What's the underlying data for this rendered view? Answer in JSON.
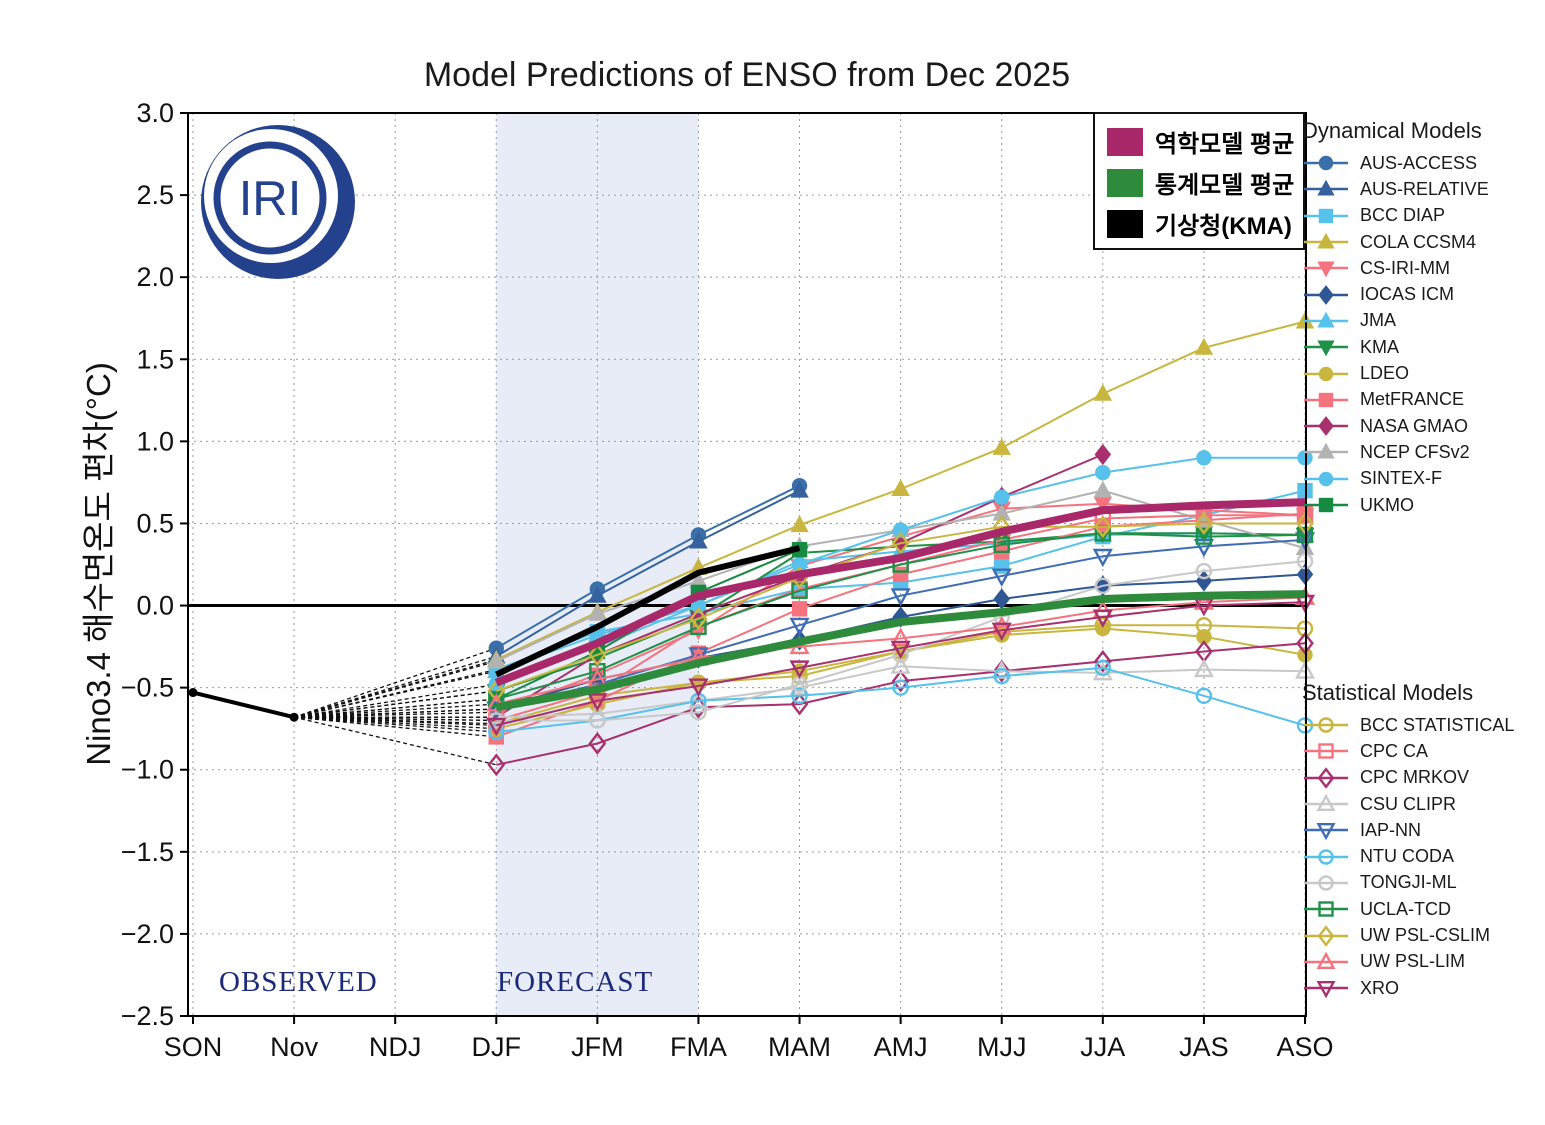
{
  "title": "Model Predictions of ENSO from Dec 2025",
  "y_axis_label": "Nino3.4 해수면온도 편차(°C)",
  "logo_text": "IRI",
  "region_labels": {
    "observed": "OBSERVED",
    "forecast": "FORECAST"
  },
  "legend_headers": {
    "dynamical": "Dynamical Models",
    "statistical": "Statistical Models"
  },
  "mean_legend": [
    {
      "label": "역학모델 평균",
      "color": "#A8286A"
    },
    {
      "label": "통계모델 평균",
      "color": "#2E8B3C"
    },
    {
      "label": "기상청(KMA)",
      "color": "#000000"
    }
  ],
  "colors": {
    "dynamical_mean": "#A8286A",
    "statistical_mean": "#2E8B3C",
    "kma_official": "#000000",
    "observed": "#000000",
    "forecast_band": "#E7ECF7",
    "grid": "#9a9a9a",
    "navy": "#24418E"
  },
  "chart_data": {
    "type": "line",
    "categories": [
      "SON",
      "Nov",
      "NDJ",
      "DJF",
      "JFM",
      "FMA",
      "MAM",
      "AMJ",
      "MJJ",
      "JJA",
      "JAS",
      "ASO"
    ],
    "y_tick_labels": [
      "3.0",
      "2.5",
      "2.0",
      "1.5",
      "1.0",
      "0.5",
      "0.0",
      "-0.5",
      "-1.0",
      "-1.5",
      "-2.0",
      "-2.5"
    ],
    "ylim": [
      -2.5,
      3.0
    ],
    "ytick_step": 0.5,
    "grid": true,
    "forecast_band": [
      "DJF",
      "FMA"
    ],
    "forecast_start_index": 3,
    "observed": {
      "categories": [
        "SON",
        "Nov"
      ],
      "values": [
        -0.53,
        -0.68
      ]
    },
    "means": {
      "dynamical": [
        -0.47,
        -0.23,
        0.06,
        0.19,
        0.29,
        0.45,
        0.58,
        0.61,
        0.63
      ],
      "statistical": [
        -0.62,
        -0.51,
        -0.35,
        -0.22,
        -0.1,
        -0.04,
        0.04,
        0.06,
        0.07
      ],
      "kma_official": [
        -0.42,
        -0.13,
        0.2,
        0.35,
        null,
        null,
        null,
        null,
        null
      ]
    },
    "series": [
      {
        "name": "AUS-ACCESS",
        "group": "dynamical",
        "color": "#3B6FA9",
        "marker": "circle",
        "filled": true,
        "values": [
          -0.26,
          0.1,
          0.43,
          0.73,
          null,
          null,
          null,
          null,
          null
        ]
      },
      {
        "name": "AUS-RELATIVE",
        "group": "dynamical",
        "color": "#35629E",
        "marker": "triangle-up",
        "filled": true,
        "values": [
          -0.31,
          0.06,
          0.39,
          0.7,
          null,
          null,
          null,
          null,
          null
        ]
      },
      {
        "name": "BCC DIAP",
        "group": "dynamical",
        "color": "#56C1EA",
        "marker": "square",
        "filled": true,
        "values": [
          -0.39,
          -0.16,
          -0.05,
          0.1,
          0.14,
          0.24,
          0.42,
          0.55,
          0.7
        ]
      },
      {
        "name": "COLA CCSM4",
        "group": "dynamical",
        "color": "#C8B63E",
        "marker": "triangle-up",
        "filled": true,
        "values": [
          -0.33,
          -0.04,
          0.23,
          0.49,
          0.71,
          0.96,
          1.29,
          1.57,
          1.73
        ]
      },
      {
        "name": "CS-IRI-MM",
        "group": "dynamical",
        "color": "#F4737E",
        "marker": "triangle-down",
        "filled": true,
        "values": [
          -0.65,
          -0.42,
          -0.15,
          0.24,
          0.42,
          0.59,
          0.62,
          0.58,
          0.55
        ]
      },
      {
        "name": "IOCAS ICM",
        "group": "dynamical",
        "color": "#2F5795",
        "marker": "diamond",
        "filled": true,
        "values": [
          -0.63,
          -0.45,
          -0.32,
          -0.21,
          -0.07,
          0.04,
          0.12,
          0.15,
          0.19
        ]
      },
      {
        "name": "JMA",
        "group": "dynamical",
        "color": "#56C1EA",
        "marker": "triangle-up",
        "filled": true,
        "values": [
          -0.4,
          -0.18,
          0.0,
          0.27,
          0.33,
          0.38,
          0.43,
          0.44,
          0.43
        ]
      },
      {
        "name": "KMA",
        "group": "dynamical",
        "color": "#1F9048",
        "marker": "triangle-down",
        "filled": true,
        "values": [
          -0.52,
          -0.32,
          -0.07,
          0.32,
          0.36,
          0.39,
          0.44,
          0.44,
          0.43
        ]
      },
      {
        "name": "LDEO",
        "group": "dynamical",
        "color": "#C8B63E",
        "marker": "circle",
        "filled": true,
        "values": [
          -0.72,
          -0.55,
          -0.47,
          -0.4,
          -0.28,
          -0.18,
          -0.14,
          -0.19,
          -0.3
        ]
      },
      {
        "name": "MetFRANCE",
        "group": "dynamical",
        "color": "#F4737E",
        "marker": "square",
        "filled": true,
        "values": [
          -0.8,
          -0.58,
          -0.29,
          -0.02,
          0.19,
          0.33,
          0.48,
          0.52,
          0.56
        ]
      },
      {
        "name": "NASA GMAO",
        "group": "dynamical",
        "color": "#A8306E",
        "marker": "diamond",
        "filled": true,
        "values": [
          -0.68,
          -0.3,
          -0.05,
          0.18,
          0.38,
          0.66,
          0.92,
          null,
          null
        ]
      },
      {
        "name": "NCEP CFSv2",
        "group": "dynamical",
        "color": "#B2B2B2",
        "marker": "triangle-up",
        "filled": true,
        "values": [
          -0.34,
          -0.05,
          0.15,
          0.36,
          0.46,
          0.56,
          0.7,
          0.52,
          0.35
        ]
      },
      {
        "name": "SINTEX-F",
        "group": "dynamical",
        "color": "#56C1EA",
        "marker": "circle",
        "filled": true,
        "values": [
          -0.48,
          -0.25,
          0.0,
          0.25,
          0.46,
          0.66,
          0.81,
          0.9,
          0.9
        ]
      },
      {
        "name": "UKMO",
        "group": "dynamical",
        "color": "#178A42",
        "marker": "square",
        "filled": true,
        "values": [
          -0.57,
          -0.28,
          0.08,
          0.34,
          null,
          null,
          null,
          null,
          null
        ]
      },
      {
        "name": "BCC STATISTICAL",
        "group": "statistical",
        "color": "#C8B63E",
        "marker": "circle",
        "filled": false,
        "values": [
          -0.75,
          -0.6,
          -0.47,
          -0.43,
          -0.28,
          -0.16,
          -0.12,
          -0.12,
          -0.14
        ]
      },
      {
        "name": "CPC CA",
        "group": "statistical",
        "color": "#F4737E",
        "marker": "square",
        "filled": false,
        "values": [
          -0.7,
          -0.52,
          -0.13,
          0.1,
          0.25,
          0.4,
          0.53,
          0.55,
          0.55
        ]
      },
      {
        "name": "CPC MRKOV",
        "group": "statistical",
        "color": "#A8306E",
        "marker": "diamond",
        "filled": false,
        "values": [
          -0.97,
          -0.84,
          -0.62,
          -0.6,
          -0.46,
          -0.4,
          -0.34,
          -0.28,
          -0.23
        ]
      },
      {
        "name": "CSU CLIPR",
        "group": "statistical",
        "color": "#C8C8C8",
        "marker": "triangle-up",
        "filled": false,
        "values": [
          -0.68,
          -0.66,
          -0.58,
          -0.5,
          -0.37,
          -0.4,
          -0.41,
          -0.39,
          -0.4
        ]
      },
      {
        "name": "IAP-NN",
        "group": "statistical",
        "color": "#3E6DB5",
        "marker": "triangle-down",
        "filled": false,
        "values": [
          -0.63,
          -0.48,
          -0.3,
          -0.12,
          0.06,
          0.18,
          0.3,
          0.36,
          0.4
        ]
      },
      {
        "name": "NTU CODA",
        "group": "statistical",
        "color": "#56C1EA",
        "marker": "circle",
        "filled": false,
        "values": [
          -0.77,
          -0.7,
          -0.58,
          -0.55,
          -0.5,
          -0.43,
          -0.38,
          -0.55,
          -0.73
        ]
      },
      {
        "name": "TONGJI-ML",
        "group": "statistical",
        "color": "#C8C8C8",
        "marker": "circle",
        "filled": false,
        "values": [
          -0.7,
          -0.7,
          -0.65,
          -0.48,
          -0.3,
          -0.07,
          0.12,
          0.21,
          0.27
        ]
      },
      {
        "name": "UCLA-TCD",
        "group": "statistical",
        "color": "#1F9048",
        "marker": "square",
        "filled": false,
        "values": [
          -0.57,
          -0.4,
          -0.13,
          0.09,
          0.25,
          0.37,
          0.44,
          0.42,
          0.43
        ]
      },
      {
        "name": "UW PSL-CSLIM",
        "group": "statistical",
        "color": "#C8B63E",
        "marker": "diamond",
        "filled": false,
        "values": [
          -0.52,
          -0.3,
          -0.08,
          0.17,
          0.38,
          0.48,
          0.48,
          0.5,
          0.5
        ]
      },
      {
        "name": "UW PSL-LIM",
        "group": "statistical",
        "color": "#F4737E",
        "marker": "triangle-up",
        "filled": false,
        "values": [
          -0.6,
          -0.45,
          -0.32,
          -0.25,
          -0.2,
          -0.13,
          -0.03,
          0.02,
          0.05
        ]
      },
      {
        "name": "XRO",
        "group": "statistical",
        "color": "#A8306E",
        "marker": "triangle-down",
        "filled": false,
        "values": [
          -0.73,
          -0.58,
          -0.49,
          -0.38,
          -0.26,
          -0.15,
          -0.07,
          0.0,
          0.02
        ]
      }
    ]
  }
}
